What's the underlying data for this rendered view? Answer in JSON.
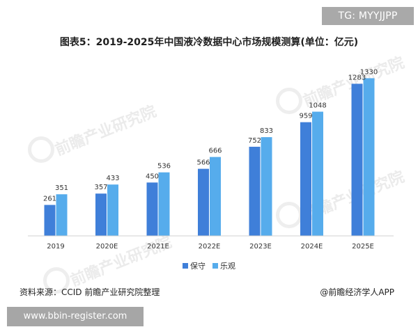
{
  "badge_top": "TG: MYYJJPP",
  "badge_bottom": "www.bbin-register.com",
  "watermark_text": "前瞻产业研究院",
  "source_text": "资料来源：CCID 前瞻产业研究院整理",
  "credit_text": "@前瞻经济学人APP",
  "chart_data": {
    "type": "bar",
    "title": "图表5：2019-2025年中国液冷数据中心市场规模测算(单位：亿元)",
    "categories": [
      "2019",
      "2020E",
      "2021E",
      "2022E",
      "2023E",
      "2024E",
      "2025E"
    ],
    "series": [
      {
        "name": "保守",
        "color": "#3f7fd9",
        "values": [
          261,
          357,
          450,
          566,
          752,
          959,
          1283
        ]
      },
      {
        "name": "乐观",
        "color": "#56acec",
        "values": [
          351,
          433,
          536,
          666,
          833,
          1048,
          1330
        ]
      }
    ],
    "ylim": [
      0,
      1450
    ],
    "grid": false,
    "legend": "bottom-center"
  }
}
